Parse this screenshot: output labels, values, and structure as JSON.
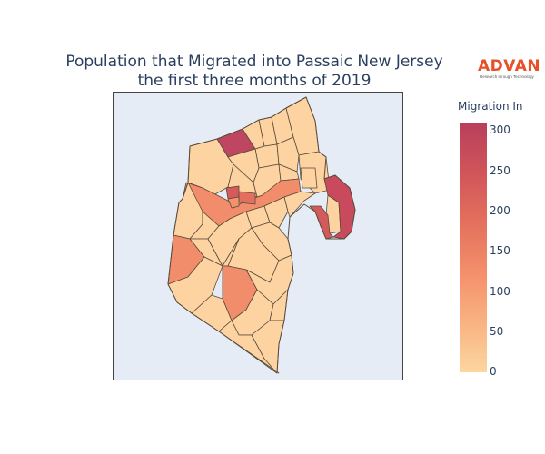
{
  "title": {
    "line1": "Population that Migrated into Passaic New Jersey",
    "line2": "the first three months of 2019"
  },
  "logo": {
    "name": "ADVAN",
    "tagline": "Research through Technology",
    "color": "#e8502a"
  },
  "colorbar": {
    "title": "Migration In",
    "ticks": [
      "300",
      "250",
      "200",
      "150",
      "100",
      "50",
      "0"
    ],
    "min": 0,
    "max": 315,
    "colors": [
      "#fcd6a0",
      "#f9b684",
      "#f5926d",
      "#e4705d",
      "#d0555a",
      "#b83f5c"
    ]
  },
  "map": {
    "background": "#e5ecf6",
    "border_color": "#5a4a3a"
  }
}
